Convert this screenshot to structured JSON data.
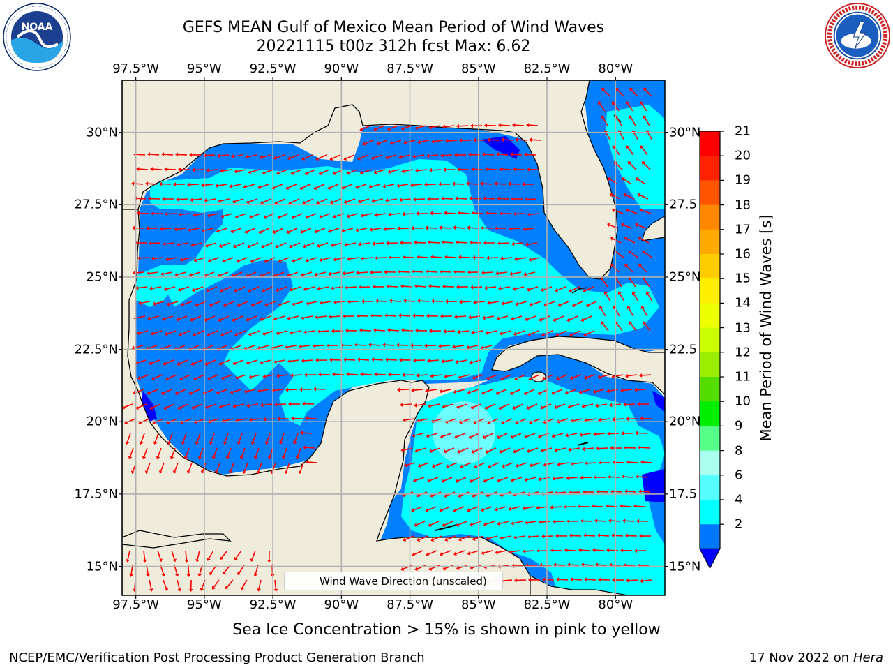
{
  "title": {
    "line1": "GEFS MEAN Gulf of Mexico Mean Period of Wind Waves",
    "line2": "20221115 t00z 312h fcst   Max: 6.62"
  },
  "logos": {
    "left": {
      "text": "NOAA",
      "ring_text": "NATIONAL OCEANIC AND ATMOSPHERIC ADMINISTRATION · U.S. DEPARTMENT OF COMMERCE"
    },
    "right": {
      "ring_text": "NATIONAL WEATHER SERVICE"
    }
  },
  "axes": {
    "lon_ticks": [
      "97.5°W",
      "95°W",
      "92.5°W",
      "90°W",
      "87.5°W",
      "85°W",
      "82.5°W",
      "80°W"
    ],
    "lat_ticks": [
      "30°N",
      "27.5°N",
      "25°N",
      "22.5°N",
      "20°N",
      "17.5°N",
      "15°N"
    ],
    "lat_ticks_right": [
      "30°N",
      "27.5",
      "25°N",
      "22.5",
      "20°N",
      "17.5",
      "15°N"
    ],
    "lon_range": [
      -98,
      -78.2
    ],
    "lat_range": [
      14,
      31.8
    ],
    "grid": true
  },
  "colorbar": {
    "title": "Mean Period of Wind Waves [s]",
    "ticks": [
      "21",
      "20",
      "19",
      "18",
      "17",
      "16",
      "15",
      "14",
      "13",
      "12",
      "11",
      "10",
      "9",
      "8",
      "6",
      "4",
      "2"
    ],
    "colors": [
      "#ff0000",
      "#ff2200",
      "#ff5500",
      "#ff8800",
      "#ffaa00",
      "#ffcc00",
      "#ffee00",
      "#eeff00",
      "#ccff00",
      "#99ee00",
      "#55dd00",
      "#00ee00",
      "#55ff88",
      "#aaffee",
      "#55ffff",
      "#00ffff",
      "#0077ff"
    ],
    "extend_color": "#0000ff"
  },
  "legend": {
    "label": "Wind Wave Direction (unscaled)"
  },
  "caption": "Sea Ice Concentration > 15% is shown in pink to yellow",
  "footer": {
    "left": "NCEP/EMC/Verification Post Processing Product Generation Branch",
    "right_date": "17 Nov 2022 on",
    "right_host": "Hera"
  },
  "colors": {
    "land": "#efecdc",
    "cyan": "#00ffff",
    "medium_blue": "#0080ff",
    "dark_blue": "#0000ff",
    "light_cyan": "#6dffff",
    "arrow": "#ff0000",
    "grid": "#b0b0b0"
  },
  "max_value": 6.62
}
